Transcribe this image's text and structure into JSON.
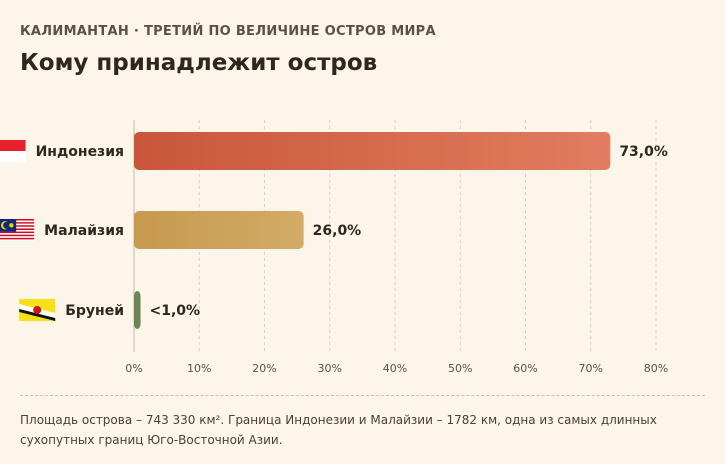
{
  "header": {
    "kicker": "КАЛИМАНТАН · ТРЕТИЙ ПО ВЕЛИЧИНЕ ОСТРОВ МИРА",
    "title": "Кому принадлежит остров"
  },
  "chart_data": {
    "type": "bar",
    "orientation": "horizontal",
    "categories": [
      "Индонезия",
      "Малайзия",
      "Бруней"
    ],
    "values": [
      73.0,
      26.0,
      1.0
    ],
    "value_labels": [
      "73,0%",
      "26,0%",
      "<1,0%"
    ],
    "flags": [
      "indonesia-flag-icon",
      "malaysia-flag-icon",
      "brunei-flag-icon"
    ],
    "bar_colors": [
      [
        "#c9563b",
        "#e27d5f"
      ],
      [
        "#c8994f",
        "#d2ab66"
      ],
      [
        "#6b8655",
        "#6b8655"
      ]
    ],
    "xlim": [
      0,
      80
    ],
    "x_ticks": [
      0,
      10,
      20,
      30,
      40,
      50,
      60,
      70,
      80
    ],
    "x_tick_labels": [
      "0%",
      "10%",
      "20%",
      "30%",
      "40%",
      "50%",
      "60%",
      "70%",
      "80%"
    ],
    "grid": "vertical-dashed",
    "title": "Кому принадлежит остров"
  },
  "footnote": "Площадь острова – 743 330 км². Граница Индонезии и Малайзии – 1782 км, одна из самых длинных сухопутных границ Юго-Восточной Азии."
}
